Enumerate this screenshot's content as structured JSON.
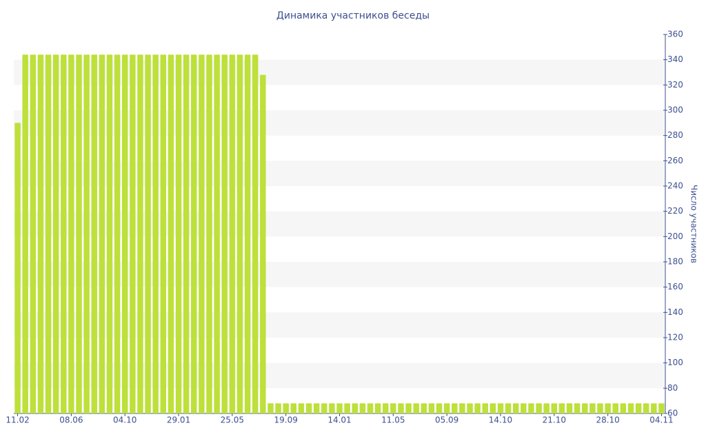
{
  "chart_data": {
    "type": "bar",
    "title": "Динамика участников беседы",
    "y_label": "Число участников",
    "categories": [
      "11.02",
      null,
      null,
      null,
      null,
      null,
      null,
      "08.06",
      null,
      null,
      null,
      null,
      null,
      null,
      "04.10",
      null,
      null,
      null,
      null,
      null,
      null,
      "29.01",
      null,
      null,
      null,
      null,
      null,
      null,
      "25.05",
      null,
      null,
      null,
      null,
      null,
      null,
      "19.09",
      null,
      null,
      null,
      null,
      null,
      null,
      "14.01",
      null,
      null,
      null,
      null,
      null,
      null,
      "11.05",
      null,
      null,
      null,
      null,
      null,
      null,
      "05.09",
      null,
      null,
      null,
      null,
      null,
      null,
      "14.10",
      null,
      null,
      null,
      null,
      null,
      null,
      "21.10",
      null,
      null,
      null,
      null,
      null,
      null,
      "28.10",
      null,
      null,
      null,
      null,
      null,
      null,
      "04.11"
    ],
    "values": [
      290,
      344,
      344,
      344,
      344,
      344,
      344,
      344,
      344,
      344,
      344,
      344,
      344,
      344,
      344,
      344,
      344,
      344,
      344,
      344,
      344,
      344,
      344,
      344,
      344,
      344,
      344,
      344,
      344,
      344,
      344,
      344,
      328,
      68,
      68,
      68,
      68,
      68,
      68,
      68,
      68,
      68,
      68,
      68,
      68,
      68,
      68,
      68,
      68,
      68,
      68,
      68,
      68,
      68,
      68,
      68,
      68,
      68,
      68,
      68,
      68,
      68,
      68,
      68,
      68,
      68,
      68,
      68,
      68,
      68,
      68,
      68,
      68,
      68,
      68,
      68,
      68,
      68,
      68,
      68,
      68,
      68,
      68,
      68,
      68
    ],
    "color": "#bde03a",
    "ylim": [
      60,
      360
    ],
    "yticks": [
      60,
      80,
      100,
      120,
      140,
      160,
      180,
      200,
      220,
      240,
      260,
      280,
      300,
      320,
      340,
      360
    ],
    "grid": "bands"
  }
}
